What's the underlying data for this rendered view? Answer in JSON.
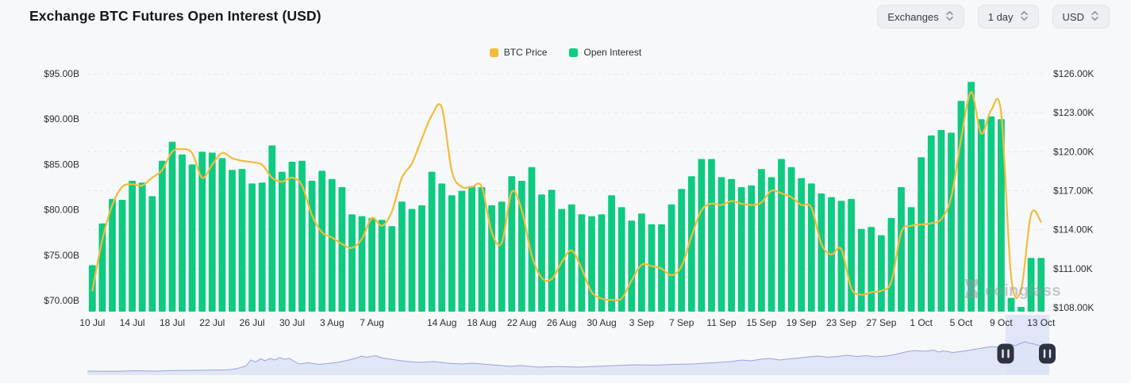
{
  "header": {
    "title": "Exchange BTC Futures Open Interest (USD)"
  },
  "controls": [
    {
      "label": "Exchanges"
    },
    {
      "label": "1 day"
    },
    {
      "label": "USD"
    }
  ],
  "legend": [
    {
      "label": "BTC Price",
      "color": "#F4BB3B"
    },
    {
      "label": "Open Interest",
      "color": "#0ECB81"
    }
  ],
  "watermark": {
    "text": "coinglass"
  },
  "chart_data": {
    "type": "bar",
    "title": "Exchange BTC Futures Open Interest (USD)",
    "x": [
      "10 Jul",
      "11 Jul",
      "12 Jul",
      "13 Jul",
      "14 Jul",
      "15 Jul",
      "16 Jul",
      "17 Jul",
      "18 Jul",
      "19 Jul",
      "20 Jul",
      "21 Jul",
      "22 Jul",
      "23 Jul",
      "24 Jul",
      "25 Jul",
      "26 Jul",
      "27 Jul",
      "28 Jul",
      "29 Jul",
      "30 Jul",
      "31 Jul",
      "1 Aug",
      "2 Aug",
      "3 Aug",
      "4 Aug",
      "5 Aug",
      "6 Aug",
      "7 Aug",
      "8 Aug",
      "9 Aug",
      "10 Aug",
      "11 Aug",
      "12 Aug",
      "13 Aug",
      "14 Aug",
      "15 Aug",
      "16 Aug",
      "17 Aug",
      "18 Aug",
      "19 Aug",
      "20 Aug",
      "21 Aug",
      "22 Aug",
      "23 Aug",
      "24 Aug",
      "25 Aug",
      "26 Aug",
      "27 Aug",
      "28 Aug",
      "29 Aug",
      "30 Aug",
      "31 Aug",
      "1 Sep",
      "2 Sep",
      "3 Sep",
      "4 Sep",
      "5 Sep",
      "6 Sep",
      "7 Sep",
      "8 Sep",
      "9 Sep",
      "10 Sep",
      "11 Sep",
      "12 Sep",
      "13 Sep",
      "14 Sep",
      "15 Sep",
      "16 Sep",
      "17 Sep",
      "18 Sep",
      "19 Sep",
      "20 Sep",
      "21 Sep",
      "22 Sep",
      "23 Sep",
      "24 Sep",
      "25 Sep",
      "26 Sep",
      "27 Sep",
      "28 Sep",
      "29 Sep",
      "30 Sep",
      "1 Oct",
      "2 Oct",
      "3 Oct",
      "4 Oct",
      "5 Oct",
      "6 Oct",
      "7 Oct",
      "8 Oct",
      "9 Oct",
      "10 Oct",
      "11 Oct",
      "12 Oct",
      "13 Oct"
    ],
    "series": [
      {
        "name": "Open Interest",
        "type": "bar",
        "axis": "left",
        "unit": "USD billions",
        "color": "#0ECB81",
        "values": [
          73.9,
          78.5,
          81.2,
          81.1,
          83.2,
          83.0,
          81.5,
          85.4,
          87.5,
          86.1,
          85.0,
          86.4,
          86.3,
          85.7,
          84.4,
          84.5,
          82.9,
          83.0,
          87.1,
          84.2,
          85.3,
          85.4,
          83.2,
          84.3,
          83.4,
          82.5,
          79.5,
          79.3,
          79.1,
          78.9,
          78.2,
          80.9,
          80.1,
          80.5,
          84.2,
          82.9,
          81.6,
          82.1,
          82.6,
          82.5,
          80.5,
          80.9,
          83.7,
          83.2,
          84.7,
          81.7,
          82.2,
          80.1,
          80.6,
          79.5,
          79.3,
          79.5,
          81.6,
          80.3,
          78.8,
          79.6,
          78.4,
          78.4,
          80.6,
          82.3,
          83.7,
          85.6,
          85.6,
          83.6,
          83.4,
          82.5,
          82.7,
          84.5,
          83.6,
          85.6,
          84.7,
          83.5,
          82.9,
          81.8,
          81.4,
          81.0,
          81.2,
          77.9,
          78.1,
          77.2,
          79.1,
          82.5,
          80.3,
          85.8,
          88.2,
          88.8,
          88.5,
          92.0,
          94.1,
          90.0,
          90.3,
          90.0,
          70.3,
          69.3,
          74.7,
          74.7
        ]
      },
      {
        "name": "BTC Price",
        "type": "line",
        "axis": "right",
        "unit": "USD thousands",
        "color": "#F4BB3B",
        "values": [
          109.3,
          113.2,
          115.9,
          117.3,
          117.5,
          117.4,
          118.0,
          118.6,
          120.0,
          120.2,
          119.9,
          118.0,
          119.0,
          119.9,
          119.5,
          119.3,
          119.2,
          119.0,
          118.0,
          117.7,
          118.0,
          117.4,
          115.1,
          113.8,
          113.4,
          112.9,
          112.6,
          113.3,
          114.9,
          114.3,
          115.4,
          118.0,
          119.1,
          121.0,
          122.8,
          123.4,
          118.5,
          117.3,
          117.3,
          117.3,
          113.8,
          113.0,
          116.9,
          115.5,
          112.0,
          110.3,
          110.2,
          111.5,
          112.4,
          111.0,
          109.2,
          108.7,
          108.6,
          108.7,
          110.1,
          111.3,
          111.2,
          111.0,
          110.5,
          111.2,
          113.5,
          115.5,
          116.0,
          115.9,
          116.2,
          116.0,
          115.9,
          116.1,
          117.0,
          116.8,
          116.5,
          115.9,
          115.7,
          112.9,
          112.1,
          112.5,
          109.5,
          109.0,
          109.2,
          109.3,
          110.0,
          113.8,
          114.3,
          114.4,
          114.5,
          114.8,
          116.5,
          121.0,
          124.6,
          121.4,
          123.2,
          123.0,
          110.4,
          109.4,
          115.2,
          114.6
        ]
      }
    ],
    "left_axis": {
      "title": "Open Interest",
      "ticks": [
        "$95.00B",
        "$90.00B",
        "$85.00B",
        "$80.00B",
        "$75.00B",
        "$70.00B"
      ],
      "values": [
        95,
        90,
        85,
        80,
        75,
        70
      ],
      "min": 68.8,
      "max": 95.7
    },
    "right_axis": {
      "title": "BTC Price",
      "ticks": [
        "$126.00K",
        "$123.00K",
        "$120.00K",
        "$117.00K",
        "$114.00K",
        "$111.00K",
        "$108.00K"
      ],
      "values": [
        126,
        123,
        120,
        117,
        114,
        111,
        108
      ],
      "min": 107.7,
      "max": 126.5
    },
    "x_ticks": [
      {
        "day": 0,
        "label": "10 Jul"
      },
      {
        "day": 4,
        "label": "14 Jul"
      },
      {
        "day": 8,
        "label": "18 Jul"
      },
      {
        "day": 12,
        "label": "22 Jul"
      },
      {
        "day": 16,
        "label": "26 Jul"
      },
      {
        "day": 20,
        "label": "30 Jul"
      },
      {
        "day": 24,
        "label": "3 Aug"
      },
      {
        "day": 28,
        "label": "7 Aug"
      },
      {
        "day": 35,
        "label": "14 Aug"
      },
      {
        "day": 39,
        "label": "18 Aug"
      },
      {
        "day": 43,
        "label": "22 Aug"
      },
      {
        "day": 47,
        "label": "26 Aug"
      },
      {
        "day": 51,
        "label": "30 Aug"
      },
      {
        "day": 55,
        "label": "3 Sep"
      },
      {
        "day": 59,
        "label": "7 Sep"
      },
      {
        "day": 63,
        "label": "11 Sep"
      },
      {
        "day": 67,
        "label": "15 Sep"
      },
      {
        "day": 71,
        "label": "19 Sep"
      },
      {
        "day": 75,
        "label": "23 Sep"
      },
      {
        "day": 79,
        "label": "27 Sep"
      },
      {
        "day": 83,
        "label": "1 Oct"
      },
      {
        "day": 87,
        "label": "5 Oct"
      },
      {
        "day": 91,
        "label": "9 Oct"
      },
      {
        "day": 95,
        "label": "13 Oct"
      }
    ],
    "grid": {
      "on": true,
      "color": "#e5e7ea"
    },
    "legend_position": "top-center",
    "navigator": {
      "area_fill": "#dde3f7",
      "line_color": "#96a3dd",
      "selection_fill": "#cdd7f5",
      "handle_fill": "#2e3344",
      "selection": [
        0.9546,
        1.0
      ],
      "profile": [
        [
          0,
          0.1
        ],
        [
          0.03,
          0.095
        ],
        [
          0.05,
          0.11
        ],
        [
          0.07,
          0.1
        ],
        [
          0.09,
          0.115
        ],
        [
          0.11,
          0.12
        ],
        [
          0.13,
          0.125
        ],
        [
          0.145,
          0.13
        ],
        [
          0.155,
          0.16
        ],
        [
          0.165,
          0.23
        ],
        [
          0.17,
          0.38
        ],
        [
          0.175,
          0.33
        ],
        [
          0.18,
          0.41
        ],
        [
          0.185,
          0.36
        ],
        [
          0.19,
          0.42
        ],
        [
          0.195,
          0.38
        ],
        [
          0.2,
          0.44
        ],
        [
          0.205,
          0.4
        ],
        [
          0.21,
          0.42
        ],
        [
          0.215,
          0.35
        ],
        [
          0.22,
          0.28
        ],
        [
          0.23,
          0.31
        ],
        [
          0.24,
          0.27
        ],
        [
          0.25,
          0.29
        ],
        [
          0.26,
          0.32
        ],
        [
          0.27,
          0.37
        ],
        [
          0.28,
          0.43
        ],
        [
          0.285,
          0.48
        ],
        [
          0.29,
          0.45
        ],
        [
          0.3,
          0.49
        ],
        [
          0.305,
          0.44
        ],
        [
          0.315,
          0.4
        ],
        [
          0.33,
          0.35
        ],
        [
          0.345,
          0.32
        ],
        [
          0.36,
          0.34
        ],
        [
          0.375,
          0.3
        ],
        [
          0.39,
          0.28
        ],
        [
          0.4,
          0.3
        ],
        [
          0.42,
          0.26
        ],
        [
          0.44,
          0.22
        ],
        [
          0.45,
          0.24
        ],
        [
          0.47,
          0.2
        ],
        [
          0.49,
          0.215
        ],
        [
          0.51,
          0.2
        ],
        [
          0.53,
          0.22
        ],
        [
          0.55,
          0.24
        ],
        [
          0.57,
          0.26
        ],
        [
          0.59,
          0.25
        ],
        [
          0.61,
          0.27
        ],
        [
          0.63,
          0.28
        ],
        [
          0.65,
          0.31
        ],
        [
          0.67,
          0.34
        ],
        [
          0.68,
          0.38
        ],
        [
          0.69,
          0.36
        ],
        [
          0.7,
          0.4
        ],
        [
          0.71,
          0.42
        ],
        [
          0.72,
          0.38
        ],
        [
          0.73,
          0.41
        ],
        [
          0.74,
          0.43
        ],
        [
          0.75,
          0.46
        ],
        [
          0.76,
          0.48
        ],
        [
          0.77,
          0.45
        ],
        [
          0.78,
          0.47
        ],
        [
          0.79,
          0.5
        ],
        [
          0.8,
          0.47
        ],
        [
          0.81,
          0.49
        ],
        [
          0.82,
          0.46
        ],
        [
          0.83,
          0.48
        ],
        [
          0.84,
          0.52
        ],
        [
          0.85,
          0.58
        ],
        [
          0.86,
          0.62
        ],
        [
          0.87,
          0.6
        ],
        [
          0.88,
          0.63
        ],
        [
          0.885,
          0.58
        ],
        [
          0.89,
          0.61
        ],
        [
          0.9,
          0.57
        ],
        [
          0.91,
          0.6
        ],
        [
          0.92,
          0.64
        ],
        [
          0.93,
          0.68
        ],
        [
          0.94,
          0.72
        ],
        [
          0.95,
          0.7
        ],
        [
          0.955,
          0.74
        ],
        [
          0.96,
          0.78
        ],
        [
          0.965,
          0.74
        ],
        [
          0.97,
          0.8
        ],
        [
          0.975,
          0.84
        ],
        [
          0.98,
          0.8
        ],
        [
          0.985,
          0.78
        ],
        [
          0.99,
          0.74
        ],
        [
          1,
          0.72
        ]
      ]
    }
  }
}
